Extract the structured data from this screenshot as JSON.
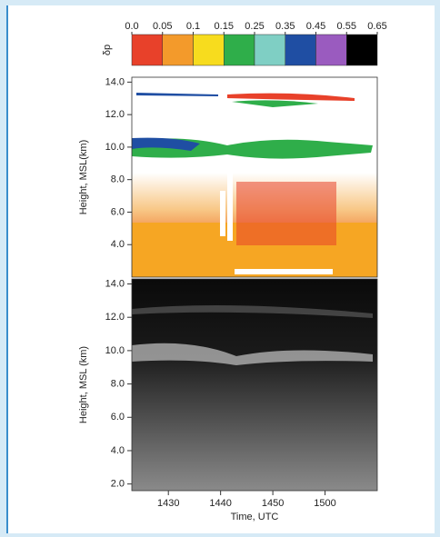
{
  "chart_data": [
    {
      "type": "colorbar",
      "label": "δp",
      "ticks": [
        {
          "value": 0,
          "label": "0.0"
        },
        0.05,
        0.1,
        0.15,
        0.25,
        0.35,
        0.45,
        0.55,
        0.65
      ],
      "colors": [
        "#e8412a",
        "#f39a2b",
        "#f7dc1e",
        "#2fae4a",
        "#7fcfc4",
        "#1f4ea3",
        "#9a5bbf",
        "#000000"
      ]
    },
    {
      "type": "image",
      "ylabel": "Height, MSL(km)",
      "ylim": [
        2,
        14.3
      ],
      "yticks": [
        {
          "value": 14,
          "label": "14.0"
        },
        {
          "value": 12,
          "label": "12.0"
        },
        {
          "value": 10,
          "label": "10.0"
        },
        {
          "value": 8,
          "label": "8.0"
        },
        {
          "value": 6,
          "label": "6.0"
        },
        {
          "value": 4,
          "label": "4.0"
        }
      ]
    },
    {
      "type": "image",
      "ylabel": "Height, MSL (km)",
      "xlabel": "Time, UTC",
      "ylim": [
        1.6,
        14.3
      ],
      "yticks": [
        {
          "value": 14,
          "label": "14.0"
        },
        {
          "value": 12,
          "label": "12.0"
        },
        {
          "value": 10,
          "label": "10.0"
        },
        {
          "value": 8,
          "label": "8.0"
        },
        {
          "value": 6,
          "label": "6.0"
        },
        {
          "value": 4,
          "label": "4.0"
        },
        {
          "value": 2,
          "label": "2.0"
        }
      ],
      "xlim": [
        863,
        910
      ],
      "xticks": [
        {
          "value": 870,
          "label": "1430"
        },
        {
          "value": 880,
          "label": "1440"
        },
        {
          "value": 890,
          "label": "1450"
        },
        {
          "value": 900,
          "label": "1500"
        }
      ]
    }
  ]
}
